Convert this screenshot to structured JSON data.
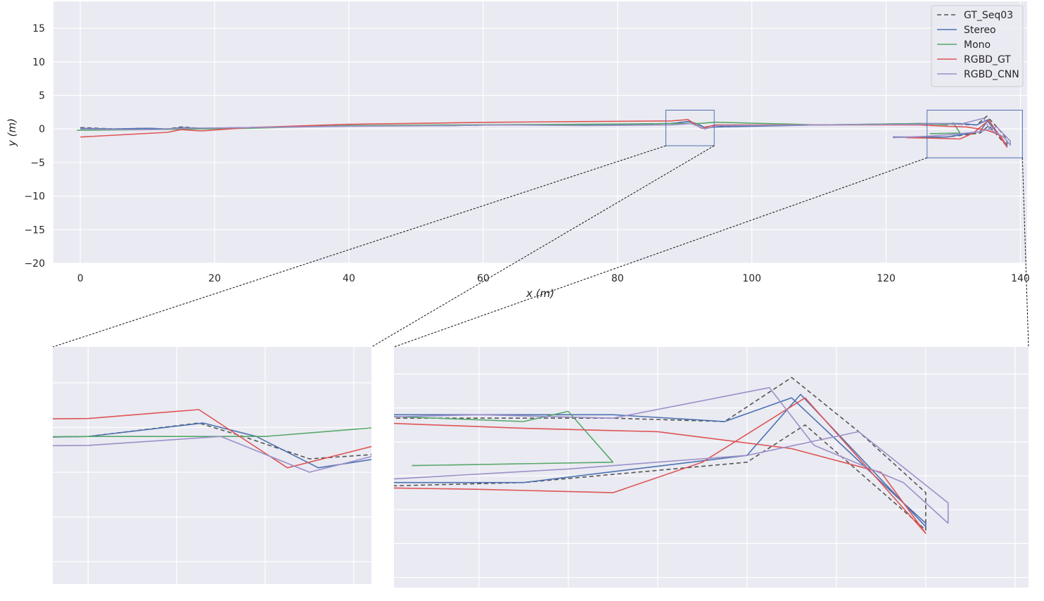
{
  "chart_data": {
    "type": "line",
    "xlabel": "x (m)",
    "ylabel": "y (m)",
    "xlim": [
      -4,
      141
    ],
    "ylim": [
      -20,
      19
    ],
    "xticks": [
      0,
      20,
      40,
      60,
      80,
      100,
      120,
      140
    ],
    "yticks": [
      15,
      10,
      5,
      0,
      -5,
      -10,
      -15,
      -20
    ],
    "xtick_labels": [
      "0",
      "20",
      "40",
      "60",
      "80",
      "100",
      "120",
      "140"
    ],
    "ytick_labels": [
      "15",
      "10",
      "5",
      "0",
      "−5",
      "−10",
      "−15",
      "−20"
    ],
    "grid": true,
    "legend_position": "top-right",
    "colors": {
      "GT_Seq03": "#555555",
      "Stereo": "#4c72b0",
      "Mono": "#55a868",
      "RGBD_GT": "#dd5555",
      "RGBD_CNN": "#9b8fc9",
      "background": "#eaeaf2"
    },
    "series": [
      {
        "name": "GT_Seq03",
        "style": "dashed",
        "x": [
          0,
          5,
          10,
          13,
          15,
          18,
          25,
          40,
          55,
          62,
          75,
          88,
          90.5,
          91.5,
          93,
          94.5,
          110,
          125,
          131,
          133.5,
          135,
          136.5,
          138,
          138,
          135.3,
          134,
          129,
          126,
          121
        ],
        "y": [
          0.2,
          0,
          0.1,
          0,
          0.3,
          0.1,
          0.2,
          0.5,
          0.5,
          0.6,
          0.6,
          0.8,
          1.1,
          0.8,
          0.3,
          0.4,
          0.6,
          0.7,
          0.7,
          0.6,
          1.9,
          0.3,
          -1.5,
          -2.6,
          0.5,
          -0.6,
          -1.2,
          -1.3,
          -1.2
        ]
      },
      {
        "name": "Stereo",
        "style": "solid",
        "x": [
          0,
          5,
          10,
          13,
          15,
          18,
          25,
          40,
          55,
          62,
          75,
          88,
          90.6,
          91.8,
          93.2,
          94.5,
          110,
          125,
          131,
          133.5,
          135,
          137.5,
          138,
          138,
          135.2,
          134,
          129,
          126,
          121
        ],
        "y": [
          0.1,
          0,
          0.1,
          0,
          0.2,
          0.1,
          0.2,
          0.5,
          0.5,
          0.6,
          0.6,
          0.8,
          1.1,
          0.8,
          0.1,
          0.3,
          0.6,
          0.8,
          0.8,
          0.6,
          1.3,
          -1.8,
          -2.4,
          -2.5,
          1.4,
          -0.4,
          -1.2,
          -1.2,
          -1.2
        ]
      },
      {
        "name": "Mono",
        "style": "solid",
        "x": [
          -0.5,
          10,
          25,
          40,
          55,
          75,
          88,
          92,
          94.5,
          110,
          125,
          129,
          130,
          131,
          126.5
        ],
        "y": [
          -0.2,
          -0.1,
          0.1,
          0.5,
          0.6,
          0.7,
          0.8,
          0.8,
          1.0,
          0.6,
          0.8,
          0.6,
          0.9,
          -0.6,
          -0.7
        ]
      },
      {
        "name": "RGBD_GT",
        "style": "solid",
        "x": [
          0,
          13,
          15,
          18,
          25,
          40,
          55,
          62,
          75,
          88,
          90.5,
          92.5,
          94.5,
          110,
          125,
          129,
          132,
          135,
          137,
          138,
          135.3,
          133,
          131,
          128,
          123
        ],
        "y": [
          -1.2,
          -0.5,
          -0.1,
          -0.3,
          0.2,
          0.7,
          0.9,
          1.0,
          1.1,
          1.2,
          1.4,
          0.1,
          0.6,
          0.6,
          0.6,
          0.4,
          0.3,
          -0.2,
          -0.9,
          -2.7,
          1.3,
          -0.6,
          -1.5,
          -1.4,
          -1.3
        ]
      },
      {
        "name": "RGBD_CNN",
        "style": "solid",
        "x": [
          0,
          10,
          15,
          25,
          40,
          55,
          62,
          75,
          88,
          91,
          93,
          95,
          110,
          125,
          128,
          131,
          134.5,
          135.5,
          137.5,
          138.5,
          138.5,
          136.5,
          134,
          130,
          126,
          121
        ],
        "y": [
          0,
          -0.1,
          0.1,
          0.2,
          0.4,
          0.5,
          0.6,
          0.5,
          0.6,
          0.8,
          0.0,
          0.5,
          0.6,
          0.7,
          0.8,
          0.7,
          1.6,
          -0.1,
          -1.2,
          -2.4,
          -1.8,
          0.3,
          -0.4,
          -0.8,
          -1.1,
          -1.3
        ]
      }
    ],
    "insets": [
      {
        "xlim": [
          87.2,
          94.4
        ],
        "ylim": [
          -2.5,
          2.8
        ]
      },
      {
        "xlim": [
          126.1,
          140.3
        ],
        "ylim": [
          -4.3,
          2.8
        ]
      }
    ]
  }
}
